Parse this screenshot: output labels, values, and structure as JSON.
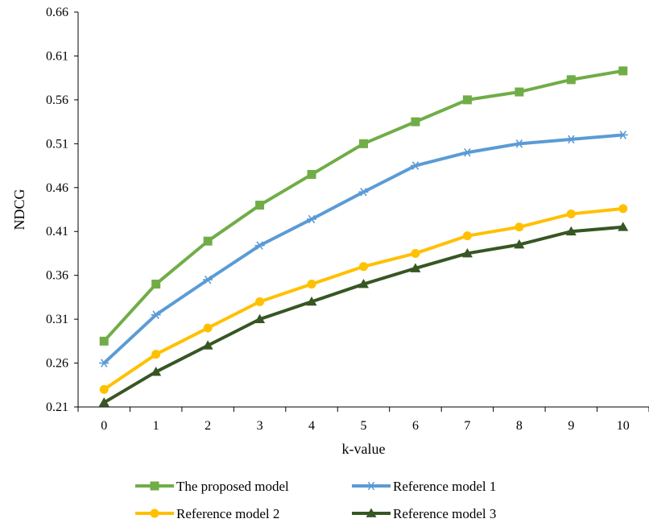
{
  "chart_data": {
    "type": "line",
    "title": "",
    "xlabel": "k-value",
    "ylabel": "NDCG",
    "x": [
      0,
      1,
      2,
      3,
      4,
      5,
      6,
      7,
      8,
      9,
      10
    ],
    "xticks": [
      "0",
      "1",
      "2",
      "3",
      "4",
      "5",
      "6",
      "7",
      "8",
      "9",
      "10"
    ],
    "ylim": [
      0.21,
      0.66
    ],
    "yticks": [
      "0.21",
      "0.26",
      "0.31",
      "0.36",
      "0.41",
      "0.46",
      "0.51",
      "0.56",
      "0.61",
      "0.66"
    ],
    "grid": false,
    "legend_position": "bottom",
    "series": [
      {
        "name": "The proposed model",
        "color": "#70AD47",
        "marker": "square",
        "values": [
          0.285,
          0.35,
          0.399,
          0.44,
          0.475,
          0.51,
          0.535,
          0.56,
          0.569,
          0.583,
          0.593
        ]
      },
      {
        "name": "Reference model 1",
        "color": "#5B9BD5",
        "marker": "asterisk",
        "values": [
          0.26,
          0.315,
          0.355,
          0.394,
          0.424,
          0.455,
          0.485,
          0.5,
          0.51,
          0.515,
          0.52
        ]
      },
      {
        "name": "Reference model 2",
        "color": "#FFC000",
        "marker": "circle",
        "values": [
          0.23,
          0.27,
          0.3,
          0.33,
          0.35,
          0.37,
          0.385,
          0.405,
          0.415,
          0.43,
          0.436
        ]
      },
      {
        "name": "Reference model 3",
        "color": "#375623",
        "marker": "triangle",
        "values": [
          0.215,
          0.25,
          0.28,
          0.31,
          0.33,
          0.35,
          0.368,
          0.385,
          0.395,
          0.41,
          0.415
        ]
      }
    ]
  }
}
